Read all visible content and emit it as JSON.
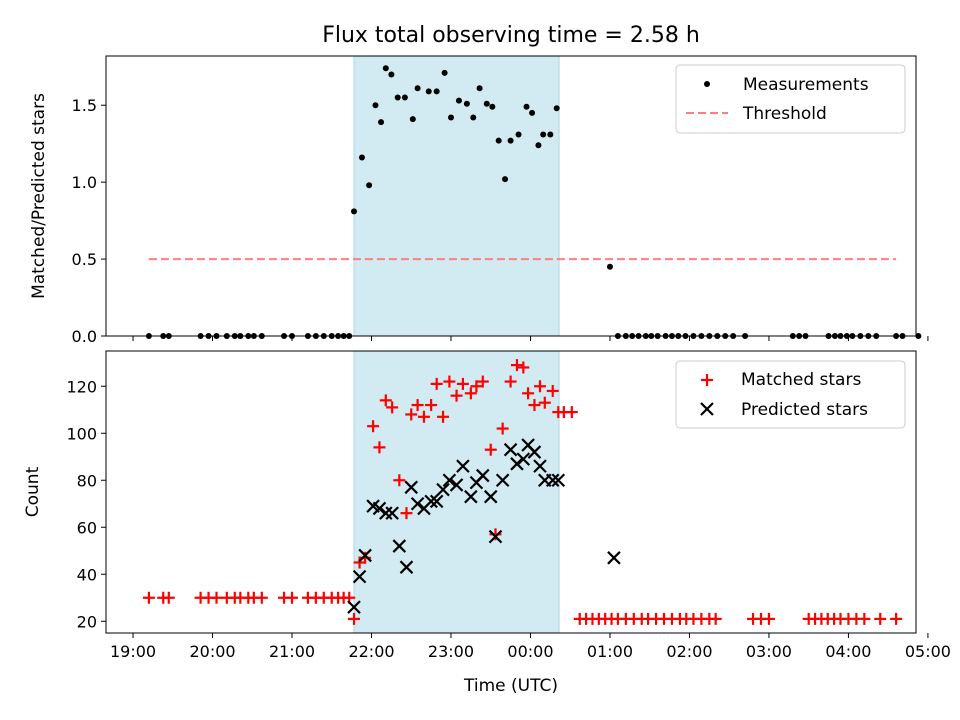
{
  "title": "Flux total observing time = 2.58 h",
  "colors": {
    "shade": "#add8e6",
    "threshold": "#ff7f7f",
    "matched": "#ff0000",
    "predicted": "#000000",
    "measurement": "#000000"
  },
  "chart_data": [
    {
      "type": "scatter",
      "id": "ratio",
      "ylabel": "Matched/Predicted stars",
      "xlabel": "",
      "x_unit": "hours since 19:00 UTC",
      "xlim": [
        -0.34,
        9.85
      ],
      "ylim": [
        0,
        1.82
      ],
      "yticks": [
        0.0,
        0.5,
        1.0,
        1.5
      ],
      "ytick_labels": [
        "0.0",
        "0.5",
        "1.0",
        "1.5"
      ],
      "legend_position": "top-right",
      "legend": [
        {
          "label": "Measurements",
          "kind": "dot"
        },
        {
          "label": "Threshold",
          "kind": "dash"
        }
      ],
      "shaded_span": [
        2.78,
        5.36
      ],
      "threshold": {
        "value": 0.5,
        "x_range": [
          0.2,
          9.6
        ]
      },
      "series": [
        {
          "name": "Measurements",
          "x": [
            0.2,
            0.38,
            0.45,
            0.85,
            0.95,
            1.05,
            1.18,
            1.28,
            1.35,
            1.45,
            1.52,
            1.62,
            1.9,
            2.0,
            2.2,
            2.3,
            2.4,
            2.5,
            2.58,
            2.65,
            2.72,
            2.78,
            2.88,
            2.97,
            3.05,
            3.12,
            3.18,
            3.25,
            3.33,
            3.42,
            3.52,
            3.58,
            3.72,
            3.82,
            3.92,
            4.0,
            4.1,
            4.2,
            4.28,
            4.36,
            4.45,
            4.52,
            4.6,
            4.68,
            4.75,
            4.85,
            4.95,
            5.02,
            5.1,
            5.16,
            5.25,
            5.33,
            6.0,
            6.1,
            6.2,
            6.28,
            6.36,
            6.45,
            6.52,
            6.6,
            6.7,
            6.78,
            6.86,
            6.95,
            7.05,
            7.15,
            7.25,
            7.35,
            7.45,
            7.55,
            7.7,
            8.3,
            8.38,
            8.46,
            8.75,
            8.83,
            8.9,
            8.98,
            9.05,
            9.15,
            9.25,
            9.35,
            9.6,
            9.68,
            9.88
          ],
          "y": [
            0,
            0,
            0,
            0,
            0,
            0,
            0,
            0,
            0,
            0,
            0,
            0,
            0,
            0,
            0,
            0,
            0,
            0,
            0,
            0,
            0,
            0.81,
            1.16,
            0.98,
            1.5,
            1.39,
            1.74,
            1.7,
            1.55,
            1.55,
            1.41,
            1.61,
            1.59,
            1.59,
            1.71,
            1.42,
            1.53,
            1.51,
            1.42,
            1.61,
            1.51,
            1.49,
            1.27,
            1.02,
            1.27,
            1.31,
            1.49,
            1.45,
            1.24,
            1.31,
            1.31,
            1.48,
            0.45,
            0,
            0,
            0,
            0,
            0,
            0,
            0,
            0,
            0,
            0,
            0,
            0,
            0,
            0,
            0,
            0,
            0,
            0,
            0,
            0,
            0,
            0,
            0,
            0,
            0,
            0,
            0,
            0,
            0,
            0,
            0,
            0
          ]
        }
      ]
    },
    {
      "type": "scatter",
      "id": "counts",
      "ylabel": "Count",
      "xlabel": "Time (UTC)",
      "x_unit": "hours since 19:00 UTC",
      "xlim": [
        -0.34,
        9.85
      ],
      "ylim": [
        15,
        135
      ],
      "yticks": [
        20,
        40,
        60,
        80,
        100,
        120
      ],
      "ytick_labels": [
        "20",
        "40",
        "60",
        "80",
        "100",
        "120"
      ],
      "xticks": [
        0,
        1,
        2,
        3,
        4,
        5,
        6,
        7,
        8,
        9,
        10
      ],
      "xtick_labels": [
        "19:00",
        "20:00",
        "21:00",
        "22:00",
        "23:00",
        "00:00",
        "01:00",
        "02:00",
        "03:00",
        "04:00",
        "05:00"
      ],
      "legend_position": "top-right",
      "legend": [
        {
          "label": "Matched stars",
          "kind": "plus"
        },
        {
          "label": "Predicted stars",
          "kind": "cross"
        }
      ],
      "shaded_span": [
        2.78,
        5.36
      ],
      "series": [
        {
          "name": "Matched stars",
          "marker": "plus",
          "x": [
            0.2,
            0.38,
            0.45,
            0.85,
            0.95,
            1.05,
            1.18,
            1.28,
            1.35,
            1.45,
            1.52,
            1.62,
            1.9,
            2.0,
            2.2,
            2.3,
            2.4,
            2.5,
            2.58,
            2.65,
            2.72,
            2.78,
            2.85,
            2.92,
            3.02,
            3.1,
            3.18,
            3.26,
            3.35,
            3.44,
            3.5,
            3.58,
            3.66,
            3.75,
            3.82,
            3.9,
            3.98,
            4.07,
            4.15,
            4.25,
            4.32,
            4.4,
            4.5,
            4.56,
            4.65,
            4.75,
            4.83,
            4.91,
            4.97,
            5.05,
            5.12,
            5.18,
            5.28,
            5.35,
            5.42,
            5.52,
            5.62,
            5.7,
            5.78,
            5.86,
            5.94,
            6.02,
            6.1,
            6.2,
            6.3,
            6.4,
            6.48,
            6.58,
            6.68,
            6.78,
            6.88,
            6.96,
            7.05,
            7.15,
            7.25,
            7.33,
            7.8,
            7.9,
            8.0,
            8.5,
            8.58,
            8.66,
            8.74,
            8.82,
            8.9,
            9.0,
            9.1,
            9.2,
            9.4,
            9.6
          ],
          "y": [
            30,
            30,
            30,
            30,
            30,
            30,
            30,
            30,
            30,
            30,
            30,
            30,
            30,
            30,
            30,
            30,
            30,
            30,
            30,
            30,
            30,
            21,
            45,
            47,
            103,
            94,
            114,
            111,
            80,
            66,
            108,
            112,
            107,
            112,
            121,
            107,
            122,
            116,
            121,
            117,
            120,
            122,
            93,
            57,
            102,
            122,
            129,
            128,
            117,
            112,
            120,
            113,
            118,
            109,
            109,
            109,
            21,
            21,
            21,
            21,
            21,
            21,
            21,
            21,
            21,
            21,
            21,
            21,
            21,
            21,
            21,
            21,
            21,
            21,
            21,
            21,
            21,
            21,
            21,
            21,
            21,
            21,
            21,
            21,
            21,
            21,
            21,
            21,
            21,
            21
          ]
        },
        {
          "name": "Predicted stars",
          "marker": "cross",
          "x": [
            2.78,
            2.85,
            2.92,
            3.02,
            3.1,
            3.18,
            3.26,
            3.35,
            3.44,
            3.5,
            3.58,
            3.66,
            3.75,
            3.82,
            3.9,
            3.98,
            4.07,
            4.15,
            4.25,
            4.32,
            4.4,
            4.5,
            4.56,
            4.65,
            4.75,
            4.83,
            4.91,
            4.97,
            5.05,
            5.12,
            5.18,
            5.28,
            5.35,
            6.05
          ],
          "y": [
            26,
            39,
            48,
            69,
            68,
            66,
            66,
            52,
            43,
            77,
            70,
            68,
            71,
            71,
            76,
            80,
            78,
            86,
            73,
            79,
            82,
            73,
            56,
            80,
            93,
            87,
            89,
            95,
            92,
            86,
            80,
            80,
            80,
            47
          ]
        }
      ]
    }
  ]
}
